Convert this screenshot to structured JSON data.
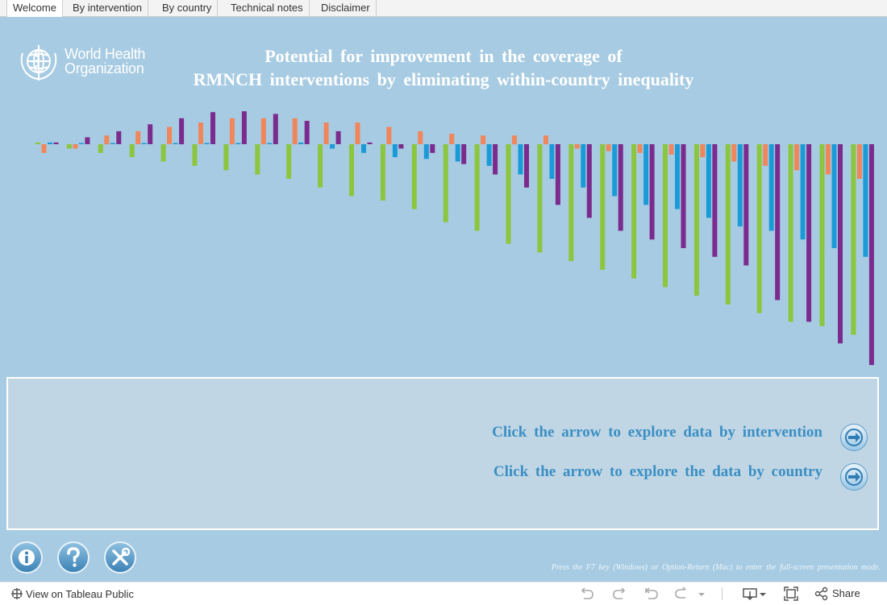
{
  "tabs": [
    {
      "label": "Welcome",
      "active": true
    },
    {
      "label": "By intervention",
      "active": false
    },
    {
      "label": "By country",
      "active": false
    },
    {
      "label": "Technical notes",
      "active": false
    },
    {
      "label": "Disclaimer",
      "active": false
    }
  ],
  "logo": {
    "line1": "World Health",
    "line2": "Organization"
  },
  "title": {
    "line1": "Potential for improvement in the coverage of",
    "line2": "RMNCH interventions by eliminating within-country inequality"
  },
  "colors": {
    "background": "#a7cbe2",
    "green": "#8cc63f",
    "orange": "#f0865c",
    "blue": "#1a9bd7",
    "purple": "#7b2a8e",
    "link": "#3a8fc4"
  },
  "chart_data": {
    "type": "bar",
    "series": [
      {
        "color": "#8cc63f",
        "values": [
          0.2,
          -0.5,
          -1,
          -1.5,
          -2,
          -2.5,
          -3,
          -3.5,
          -4,
          -5,
          -6,
          -6.5,
          -7.5,
          -9,
          -10,
          -11.5,
          -12.5,
          -13.5,
          -14.5,
          -15.5,
          -16.5,
          -17.5,
          -18.5,
          -19.5,
          -20.5,
          -21,
          -22
        ]
      },
      {
        "color": "#f0865c",
        "values": [
          -1,
          -0.5,
          1,
          1.5,
          2,
          2.5,
          3,
          3,
          3,
          2.5,
          2.5,
          2,
          1.5,
          1.2,
          1,
          1,
          1,
          -0.5,
          -0.8,
          -1,
          -1.2,
          -1.5,
          -2,
          -2.5,
          -3,
          -3.5,
          -4
        ]
      },
      {
        "color": "#1a9bd7",
        "values": [
          0.2,
          0.1,
          0.1,
          0.1,
          0,
          0,
          0.1,
          0,
          0.2,
          -0.5,
          -1,
          -1.5,
          -1.7,
          -2,
          -2.5,
          -3.5,
          -4,
          -5,
          -6,
          -7,
          -7.5,
          -8.5,
          -9.5,
          -10,
          -11,
          -12,
          -13
        ]
      },
      {
        "color": "#7b2a8e",
        "values": [
          0.2,
          0.8,
          1.5,
          2.3,
          3,
          3.7,
          3.8,
          3.5,
          2.7,
          1.5,
          0.2,
          -0.5,
          -1,
          -2.3,
          -3.5,
          -5,
          -7,
          -8.5,
          -10,
          -11,
          -12,
          -13,
          -14,
          -18,
          -20.5,
          -23,
          -25.5
        ]
      }
    ],
    "ylim": [
      -25.5,
      4
    ]
  },
  "nav": {
    "intervention_text": "Click the arrow to explore data by intervention",
    "country_text": "Click the arrow to explore the data by country"
  },
  "hint": "Press the F7 key (Windows) or Option-Return (Mac) to enter the full-screen presentation mode.",
  "footer": {
    "view_label": "View on Tableau Public",
    "share_label": "Share"
  }
}
